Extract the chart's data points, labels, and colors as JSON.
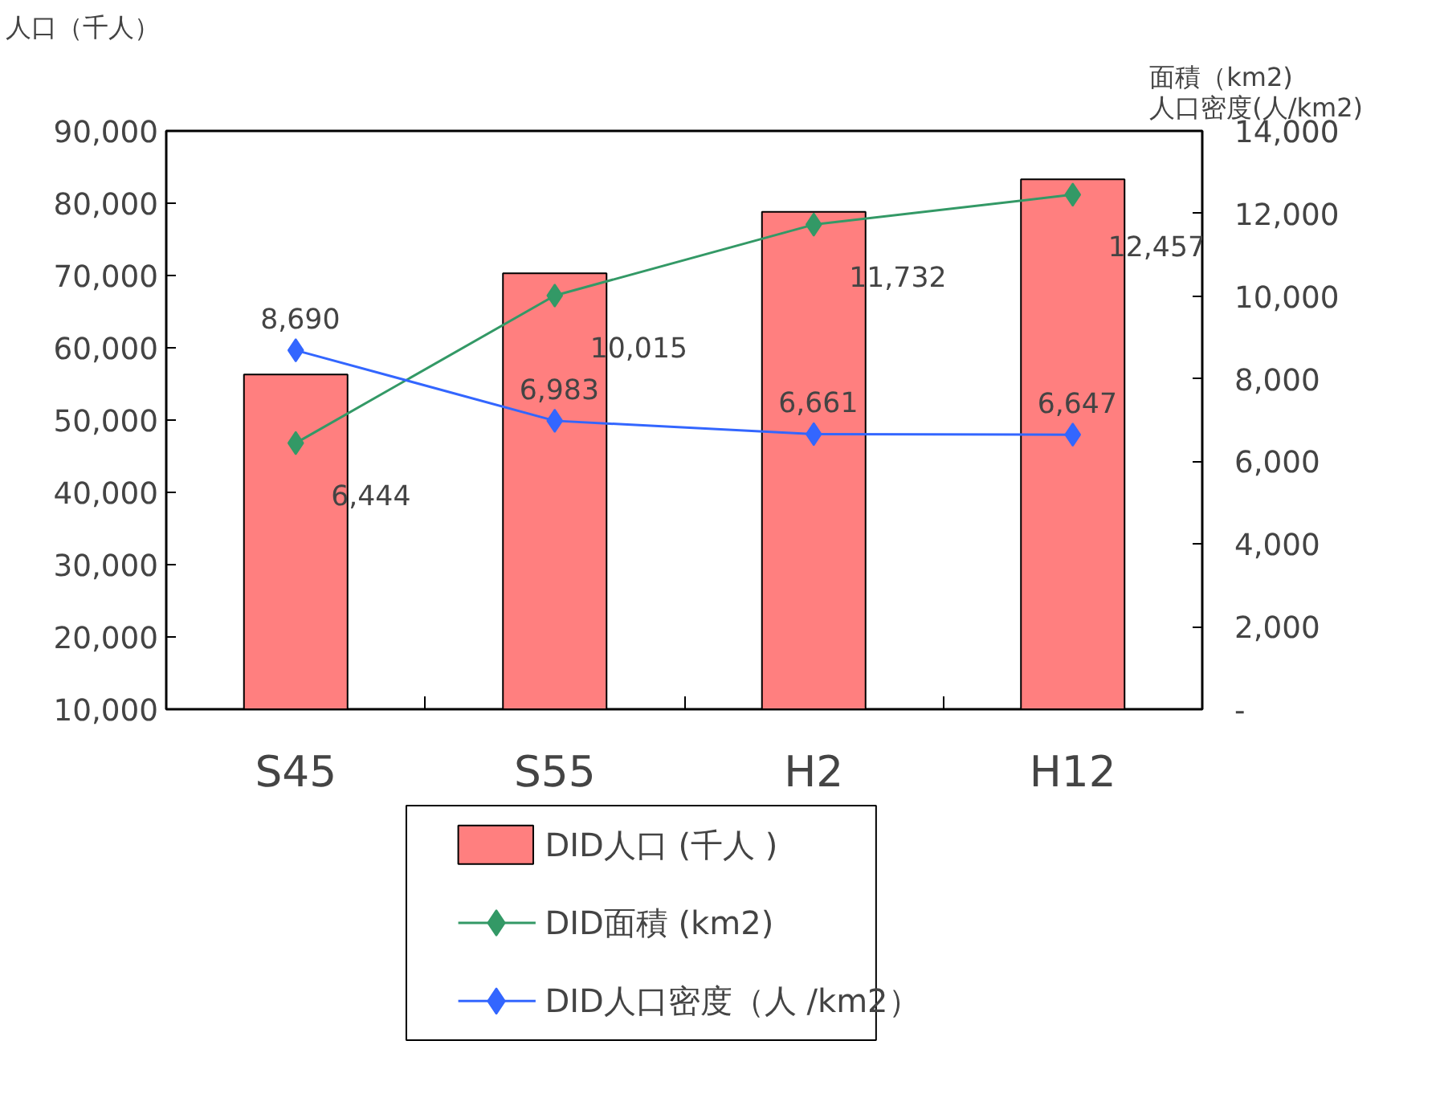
{
  "chart_data": {
    "type": "bar",
    "ylabel": "人口（千人）",
    "y2label": "面積（km2)\n人口密度(人/km2)",
    "categories": [
      "S45",
      "S55",
      "H2",
      "H12"
    ],
    "series": [
      {
        "name": "DID人口 (千人 )",
        "color": "#ff7f7f",
        "values": [
          56300,
          70300,
          78800,
          83300
        ]
      },
      {
        "name": "DID面積 (km2)",
        "type": "line",
        "axis": "y2",
        "color": "#339966",
        "marker": "diamond",
        "values": [
          6444,
          10015,
          11732,
          12457
        ],
        "value_labels": [
          "6,444",
          "10,015",
          "11,732",
          "12,457"
        ]
      },
      {
        "name": "DID人口密度（人 /km2）",
        "type": "line",
        "axis": "y2",
        "color": "#3366ff",
        "marker": "diamond",
        "values": [
          8690,
          6983,
          6661,
          6647
        ],
        "value_labels": [
          "8,690",
          "6,983",
          "6,661",
          "6,647"
        ]
      }
    ],
    "ylim": [
      10000,
      90000
    ],
    "yticks": [
      {
        "value": 10000,
        "label": "10,000"
      },
      {
        "value": 20000,
        "label": "20,000"
      },
      {
        "value": 30000,
        "label": "30,000"
      },
      {
        "value": 40000,
        "label": "40,000"
      },
      {
        "value": 50000,
        "label": "50,000"
      },
      {
        "value": 60000,
        "label": "60,000"
      },
      {
        "value": 70000,
        "label": "70,000"
      },
      {
        "value": 80000,
        "label": "80,000"
      },
      {
        "value": 90000,
        "label": "90,000"
      }
    ],
    "y2lim": [
      0,
      14000
    ],
    "y2ticks": [
      {
        "value": 0,
        "label": "-"
      },
      {
        "value": 2000,
        "label": "2,000"
      },
      {
        "value": 4000,
        "label": "4,000"
      },
      {
        "value": 6000,
        "label": "6,000"
      },
      {
        "value": 8000,
        "label": "8,000"
      },
      {
        "value": 10000,
        "label": "10,000"
      },
      {
        "value": 12000,
        "label": "12,000"
      },
      {
        "value": 14000,
        "label": "14,000"
      }
    ],
    "grid": false,
    "legend": "bottom"
  }
}
